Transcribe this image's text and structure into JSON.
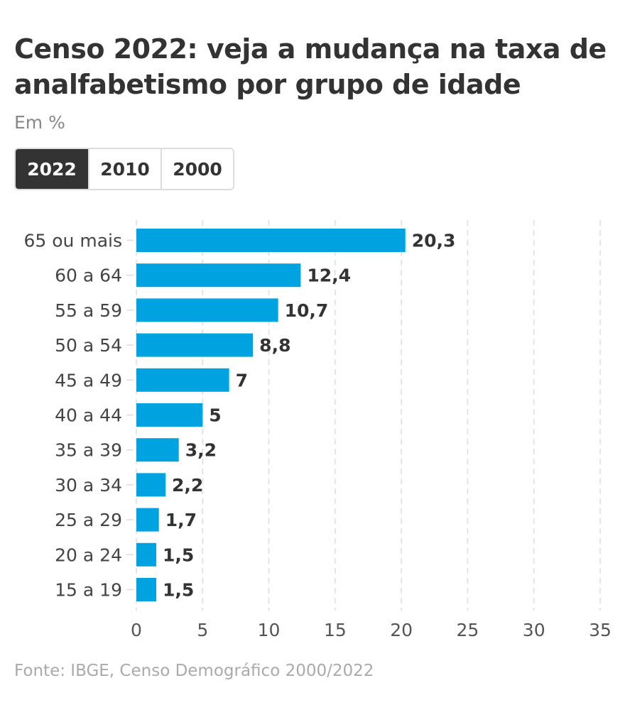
{
  "header": {
    "title": "Censo 2022: veja a mudança na taxa de analfabetismo por grupo de idade",
    "subtitle": "Em %"
  },
  "tabs": [
    {
      "label": "2022",
      "active": true
    },
    {
      "label": "2010",
      "active": false
    },
    {
      "label": "2000",
      "active": false
    }
  ],
  "colors": {
    "bar": "#00a3e0",
    "active_tab": "#333333",
    "grid": "#dddddd"
  },
  "chart_data": {
    "type": "bar",
    "orientation": "horizontal",
    "title": "Censo 2022: veja a mudança na taxa de analfabetismo por grupo de idade",
    "subtitle": "Em %",
    "xlabel": "",
    "ylabel": "",
    "categories": [
      "65 ou mais",
      "60 a 64",
      "55 a 59",
      "50 a 54",
      "45 a 49",
      "40 a 44",
      "35 a 39",
      "30 a 34",
      "25 a 29",
      "20 a 24",
      "15 a 19"
    ],
    "values": [
      20.3,
      12.4,
      10.7,
      8.8,
      7,
      5,
      3.2,
      2.2,
      1.7,
      1.5,
      1.5
    ],
    "value_labels": [
      "20,3",
      "12,4",
      "10,7",
      "8,8",
      "7",
      "5",
      "3,2",
      "2,2",
      "1,7",
      "1,5",
      "1,5"
    ],
    "xlim": [
      0,
      35
    ],
    "xticks": [
      0,
      5,
      10,
      15,
      20,
      25,
      30,
      35
    ],
    "grid": "vertical dashed",
    "legend": "none",
    "selected_year": "2022"
  },
  "footer": {
    "source": "Fonte: IBGE, Censo Demográfico 2000/2022"
  }
}
